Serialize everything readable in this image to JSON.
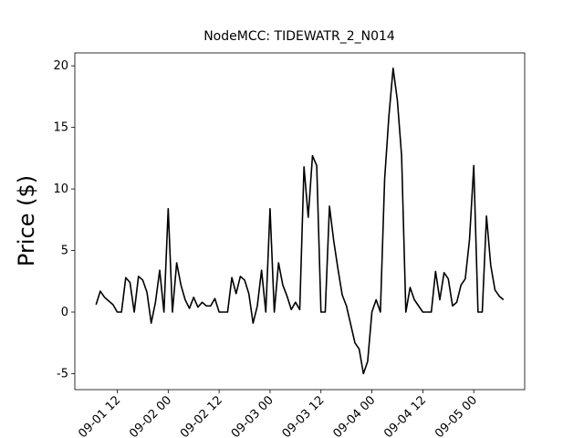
{
  "chart_data": {
    "type": "line",
    "title": "NodeMCC: TIDEWATR_2_N014",
    "ylabel": "Price ($)",
    "x": [
      "09-01 07",
      "09-01 08",
      "09-01 09",
      "09-01 10",
      "09-01 11",
      "09-01 12",
      "09-01 13",
      "09-01 14",
      "09-01 15",
      "09-01 16",
      "09-01 17",
      "09-01 18",
      "09-01 19",
      "09-01 20",
      "09-01 21",
      "09-01 22",
      "09-01 23",
      "09-02 00",
      "09-02 01",
      "09-02 02",
      "09-02 03",
      "09-02 04",
      "09-02 05",
      "09-02 06",
      "09-02 07",
      "09-02 08",
      "09-02 09",
      "09-02 10",
      "09-02 11",
      "09-02 12",
      "09-02 13",
      "09-02 14",
      "09-02 15",
      "09-02 16",
      "09-02 17",
      "09-02 18",
      "09-02 19",
      "09-02 20",
      "09-02 21",
      "09-02 22",
      "09-02 23",
      "09-03 00",
      "09-03 01",
      "09-03 02",
      "09-03 03",
      "09-03 04",
      "09-03 05",
      "09-03 06",
      "09-03 07",
      "09-03 08",
      "09-03 09",
      "09-03 10",
      "09-03 11",
      "09-03 12",
      "09-03 13",
      "09-03 14",
      "09-03 15",
      "09-03 16",
      "09-03 17",
      "09-03 18",
      "09-03 19",
      "09-03 20",
      "09-03 21",
      "09-03 22",
      "09-03 23",
      "09-04 00",
      "09-04 01",
      "09-04 02",
      "09-04 03",
      "09-04 04",
      "09-04 05",
      "09-04 06",
      "09-04 07",
      "09-04 08",
      "09-04 09",
      "09-04 10",
      "09-04 11",
      "09-04 12",
      "09-04 13",
      "09-04 14",
      "09-04 15",
      "09-04 16",
      "09-04 17",
      "09-04 18",
      "09-04 19",
      "09-04 20",
      "09-04 21",
      "09-04 22",
      "09-04 23",
      "09-05 00",
      "09-05 01",
      "09-05 02",
      "09-05 03",
      "09-05 04",
      "09-05 05",
      "09-05 06",
      "09-05 07"
    ],
    "series": [
      {
        "name": "TIDEWATR_2_N014",
        "color": "#000000",
        "values": [
          0.6,
          1.7,
          1.2,
          0.9,
          0.6,
          0,
          0,
          2.8,
          2.4,
          0,
          2.9,
          2.6,
          1.6,
          -0.9,
          0.8,
          3.4,
          0,
          8.4,
          0,
          4.0,
          2.2,
          1.0,
          0.3,
          1.2,
          0.4,
          0.8,
          0.5,
          0.5,
          1.1,
          0,
          0,
          0,
          2.8,
          1.5,
          2.9,
          2.6,
          1.5,
          -0.9,
          0.5,
          3.4,
          0,
          8.4,
          0,
          4.0,
          2.2,
          1.3,
          0.2,
          0.8,
          0.2,
          11.8,
          7.7,
          12.7,
          11.9,
          0,
          0,
          8.6,
          5.8,
          3.5,
          1.4,
          0.5,
          -1.0,
          -2.5,
          -3.0,
          -5.0,
          -4.0,
          0,
          1.0,
          0,
          10.8,
          15.9,
          19.8,
          17.2,
          12.7,
          0,
          2.0,
          1.0,
          0.5,
          0,
          0,
          0,
          3.3,
          1.0,
          3.2,
          2.7,
          0.5,
          0.8,
          2.2,
          2.7,
          5.9,
          11.9,
          0,
          0,
          7.8,
          3.8,
          1.8,
          1.3,
          1.0
        ]
      }
    ],
    "xlim": [
      "09-01 02",
      "09-05 12"
    ],
    "xticks": [
      "09-01 12",
      "09-02 00",
      "09-02 12",
      "09-03 00",
      "09-03 12",
      "09-04 00",
      "09-04 12",
      "09-05 00"
    ],
    "ylim": [
      -6.3,
      21.05
    ],
    "yticks": [
      -5,
      0,
      5,
      10,
      15,
      20
    ]
  }
}
